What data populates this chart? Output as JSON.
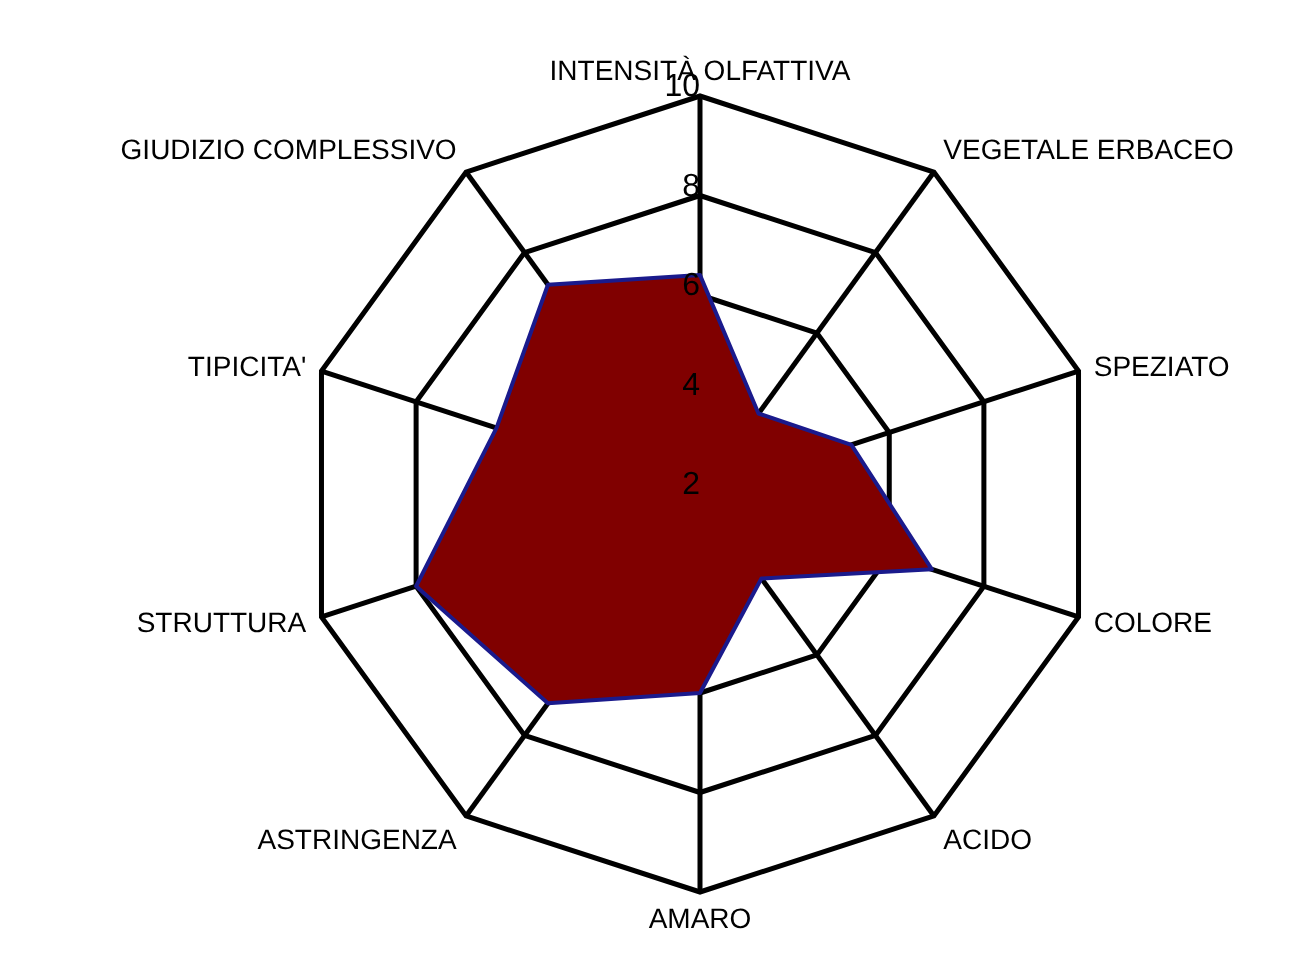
{
  "chart_data": {
    "type": "radar",
    "categories": [
      "INTENSITÀ OLFATTIVA",
      "VEGETALE ERBACEO",
      "SPEZIATO",
      "COLORE",
      "ACIDO",
      "AMARO",
      "ASTRINGENZA",
      "STRUTTURA",
      "TIPICITA'",
      "GIUDIZIO COMPLESSIVO"
    ],
    "series": [
      {
        "color": "#800000",
        "values": [
          6.4,
          4,
          5.2,
          6.9,
          4.1,
          6,
          7.2,
          8,
          6.3,
          7.2
        ]
      }
    ],
    "ylim": [
      2,
      10
    ],
    "yticks": [
      2,
      4,
      6,
      8,
      10
    ],
    "grid": true
  }
}
